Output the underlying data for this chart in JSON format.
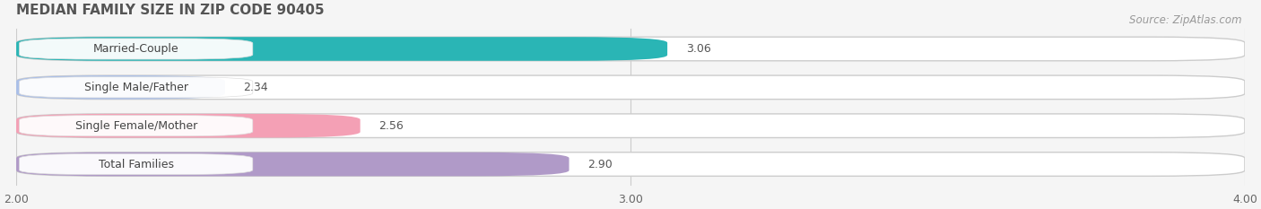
{
  "title": "MEDIAN FAMILY SIZE IN ZIP CODE 90405",
  "source": "Source: ZipAtlas.com",
  "categories": [
    "Married-Couple",
    "Single Male/Father",
    "Single Female/Mother",
    "Total Families"
  ],
  "values": [
    3.06,
    2.34,
    2.56,
    2.9
  ],
  "bar_colors": [
    "#2ab5b5",
    "#aabfe8",
    "#f4a0b5",
    "#b09ac8"
  ],
  "xlim": [
    2.0,
    4.0
  ],
  "xticks": [
    2.0,
    3.0,
    4.0
  ],
  "xmin": 2.0,
  "xmax": 4.0,
  "title_fontsize": 11,
  "label_fontsize": 9,
  "value_fontsize": 9,
  "source_fontsize": 8.5,
  "bar_height": 0.62,
  "background_color": "#f5f5f5",
  "bar_bg_color": "#e8e8e8"
}
